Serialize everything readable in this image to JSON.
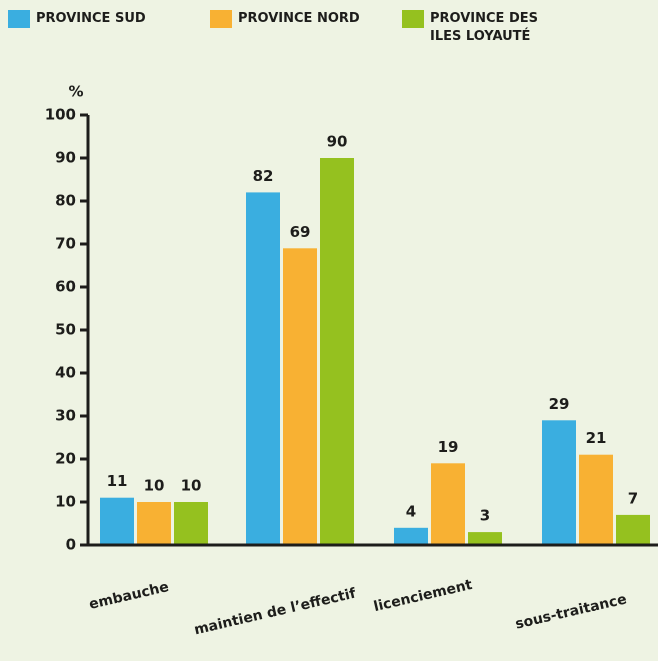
{
  "chart_data": {
    "type": "bar",
    "y_label": "%",
    "categories": [
      "embauche",
      "maintien de l’effectif",
      "licenciement",
      "sous-traitance"
    ],
    "series": [
      {
        "name": "PROVINCE SUD",
        "color": "#3aaee0",
        "values": [
          11,
          82,
          4,
          29
        ]
      },
      {
        "name": "PROVINCE NORD",
        "color": "#f8b133",
        "values": [
          10,
          69,
          19,
          21
        ]
      },
      {
        "name": "PROVINCE DES ILES LOYAUTÉ",
        "color": "#95c11f",
        "values": [
          10,
          90,
          3,
          7
        ]
      }
    ],
    "ylim": [
      0,
      100
    ],
    "yticks": [
      0,
      10,
      20,
      30,
      40,
      50,
      60,
      70,
      80,
      90,
      100
    ],
    "legend": "top"
  }
}
